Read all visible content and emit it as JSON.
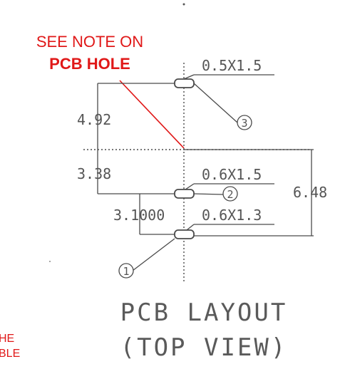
{
  "note": {
    "line1": "SEE NOTE ON",
    "line2": "PCB HOLE",
    "color": "#e01818"
  },
  "left_fragment": {
    "line1": "HE",
    "line2": "BLE"
  },
  "dimensions": {
    "upper_pitch": "4.92",
    "lower_pitch": "3.38",
    "pad_offset": "3.1000",
    "overall": "6.48"
  },
  "pads": [
    {
      "number": "3",
      "size": "0.5X1.5"
    },
    {
      "number": "2",
      "size": "0.6X1.5"
    },
    {
      "number": "1",
      "size": "0.6X1.3"
    }
  ],
  "title": {
    "line1": "PCB LAYOUT",
    "line2": "(TOP VIEW)"
  }
}
